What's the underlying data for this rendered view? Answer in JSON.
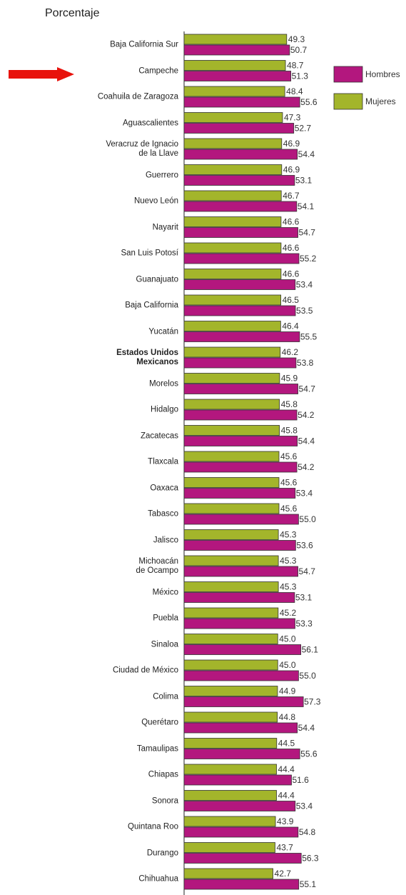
{
  "chart_data": {
    "type": "barh",
    "title": "Porcentaje",
    "categories": [
      "Baja California Sur",
      "Campeche",
      "Coahuila de Zaragoza",
      "Aguascalientes",
      "Veracruz de Ignacio\nde la Llave",
      "Guerrero",
      "Nuevo León",
      "Nayarit",
      "San Luis Potosí",
      "Guanajuato",
      "Baja California",
      "Yucatán",
      "Estados Unidos\nMexicanos",
      "Morelos",
      "Hidalgo",
      "Zacatecas",
      "Tlaxcala",
      "Oaxaca",
      "Tabasco",
      "Jalisco",
      "Michoacán\nde Ocampo",
      "México",
      "Puebla",
      "Sinaloa",
      "Ciudad de México",
      "Colima",
      "Querétaro",
      "Tamaulipas",
      "Chiapas",
      "Sonora",
      "Quintana Roo",
      "Durango",
      "Chihuahua"
    ],
    "series": [
      {
        "name": "Mujeres",
        "color": "#a3b52b",
        "values": [
          49.3,
          48.7,
          48.4,
          47.3,
          46.9,
          46.9,
          46.7,
          46.6,
          46.6,
          46.6,
          46.5,
          46.4,
          46.2,
          45.9,
          45.8,
          45.8,
          45.6,
          45.6,
          45.6,
          45.3,
          45.3,
          45.3,
          45.2,
          45.0,
          45.0,
          44.9,
          44.8,
          44.5,
          44.4,
          44.4,
          43.9,
          43.7,
          42.7
        ],
        "value_labels": [
          "49.3",
          "48.7",
          "48.4",
          "47.3",
          "46.9",
          "46.9",
          "46.7",
          "46.6",
          "46.6",
          "46.6",
          "46.5",
          "46.4",
          "46.2",
          "45.9",
          "45.8",
          "45.8",
          "45.6",
          "45.6",
          "45.6",
          "45.3",
          "45.3",
          "45.3",
          "45.2",
          "45.0",
          "45.0",
          "44.9",
          "44.8",
          "44.5",
          "44.4",
          "44.4",
          "43.9",
          "43.7",
          "42.7"
        ]
      },
      {
        "name": "Hombres",
        "color": "#b3177e",
        "values": [
          50.7,
          51.3,
          55.6,
          52.7,
          54.4,
          53.1,
          54.1,
          54.7,
          55.2,
          53.4,
          53.5,
          55.5,
          53.8,
          54.7,
          54.2,
          54.4,
          54.2,
          53.4,
          55.0,
          53.6,
          54.7,
          53.1,
          53.3,
          56.1,
          55.0,
          57.3,
          54.4,
          55.6,
          51.6,
          53.4,
          54.8,
          56.3,
          55.1
        ],
        "value_labels": [
          "50.7",
          "51.3",
          "55.6",
          "52.7",
          "54.4",
          "53.1",
          "54.1",
          "54.7",
          "55.2",
          "53.4",
          "53.5",
          "55.5",
          "53.8",
          "54.7",
          "54.2",
          "54.4",
          "54.2",
          "53.4",
          "55.0",
          "53.6",
          "54.7",
          "53.1",
          "53.3",
          "56.1",
          "55.0",
          "57.3",
          "54.4",
          "55.6",
          "51.6",
          "53.4",
          "54.8",
          "56.3",
          "55.1"
        ]
      }
    ],
    "xlim": [
      0,
      60
    ]
  }
}
